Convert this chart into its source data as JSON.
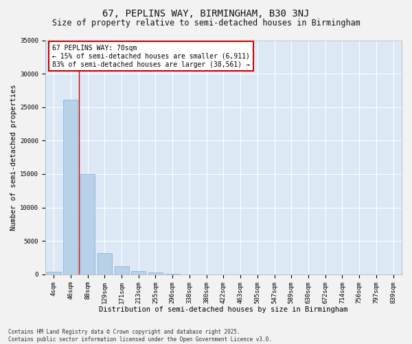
{
  "title": "67, PEPLINS WAY, BIRMINGHAM, B30 3NJ",
  "subtitle": "Size of property relative to semi-detached houses in Birmingham",
  "xlabel": "Distribution of semi-detached houses by size in Birmingham",
  "ylabel": "Number of semi-detached properties",
  "categories": [
    "4sqm",
    "46sqm",
    "88sqm",
    "129sqm",
    "171sqm",
    "213sqm",
    "255sqm",
    "296sqm",
    "338sqm",
    "380sqm",
    "422sqm",
    "463sqm",
    "505sqm",
    "547sqm",
    "589sqm",
    "630sqm",
    "672sqm",
    "714sqm",
    "756sqm",
    "797sqm",
    "839sqm"
  ],
  "values": [
    350,
    26100,
    15000,
    3200,
    1200,
    450,
    250,
    100,
    0,
    0,
    0,
    0,
    0,
    0,
    0,
    0,
    0,
    0,
    0,
    0,
    0
  ],
  "bar_color": "#b8d0e8",
  "bar_edgecolor": "#7aafd4",
  "vline_x": 1.5,
  "vline_color": "#cc0000",
  "annotation_text": "67 PEPLINS WAY: 70sqm\n← 15% of semi-detached houses are smaller (6,911)\n83% of semi-detached houses are larger (38,561) →",
  "annotation_box_facecolor": "#ffffff",
  "annotation_box_edgecolor": "#cc0000",
  "ylim": [
    0,
    35000
  ],
  "yticks": [
    0,
    5000,
    10000,
    15000,
    20000,
    25000,
    30000,
    35000
  ],
  "ytick_labels": [
    "0",
    "5000",
    "10000",
    "15000",
    "20000",
    "25000",
    "30000",
    "35000"
  ],
  "plot_bg_color": "#dce8f5",
  "fig_bg_color": "#f2f2f2",
  "grid_color": "#ffffff",
  "footer": "Contains HM Land Registry data © Crown copyright and database right 2025.\nContains public sector information licensed under the Open Government Licence v3.0.",
  "title_fontsize": 10,
  "subtitle_fontsize": 8.5,
  "xlabel_fontsize": 7.5,
  "ylabel_fontsize": 7.5,
  "tick_fontsize": 6.5,
  "annotation_fontsize": 7,
  "footer_fontsize": 5.5
}
